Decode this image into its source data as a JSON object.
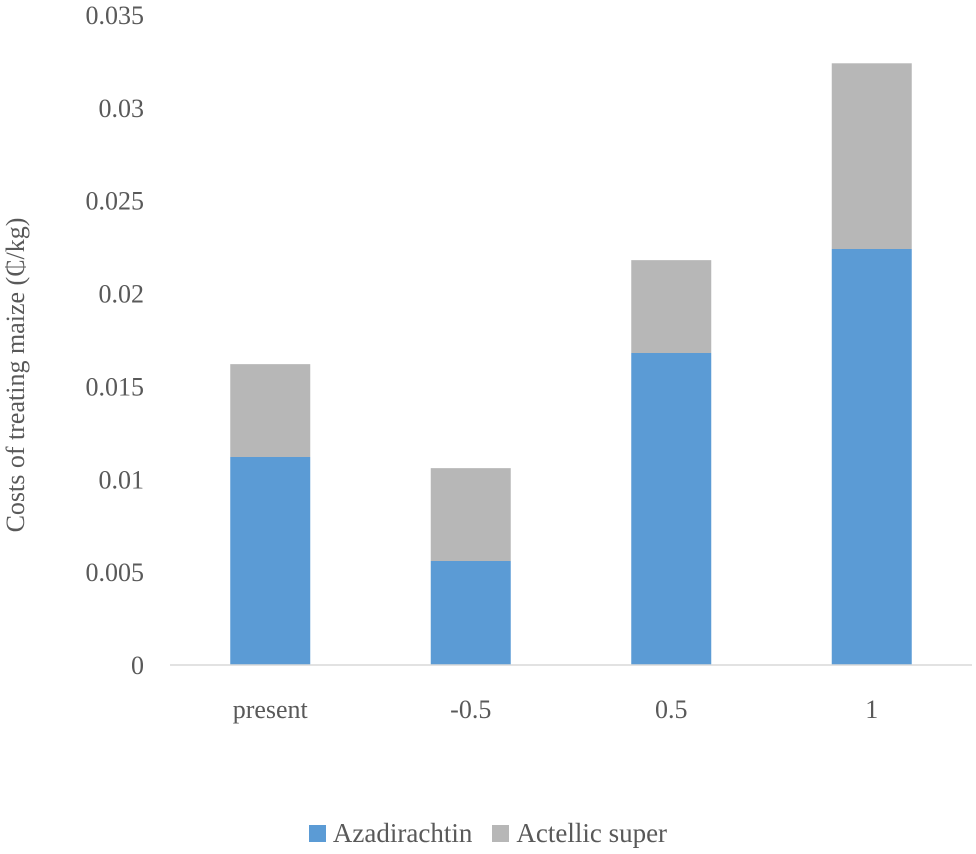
{
  "chart_data": {
    "type": "bar",
    "stacked": true,
    "title": "",
    "xlabel": "",
    "ylabel": "Costs of treating maize (₵/kg)",
    "ylim": [
      0,
      0.035
    ],
    "yticks": [
      "0",
      "0.005",
      "0.01",
      "0.015",
      "0.02",
      "0.025",
      "0.03",
      "0.035"
    ],
    "categories": [
      "present",
      "-0.5",
      "0.5",
      "1"
    ],
    "series": [
      {
        "name": "Azadirachtin",
        "color": "#5B9BD5",
        "values": [
          0.0112,
          0.0056,
          0.0168,
          0.0224
        ]
      },
      {
        "name": "Actellic super",
        "color": "#B7B7B7",
        "values": [
          0.005,
          0.005,
          0.005,
          0.01
        ]
      }
    ],
    "grid": false,
    "legend": "bottom"
  }
}
